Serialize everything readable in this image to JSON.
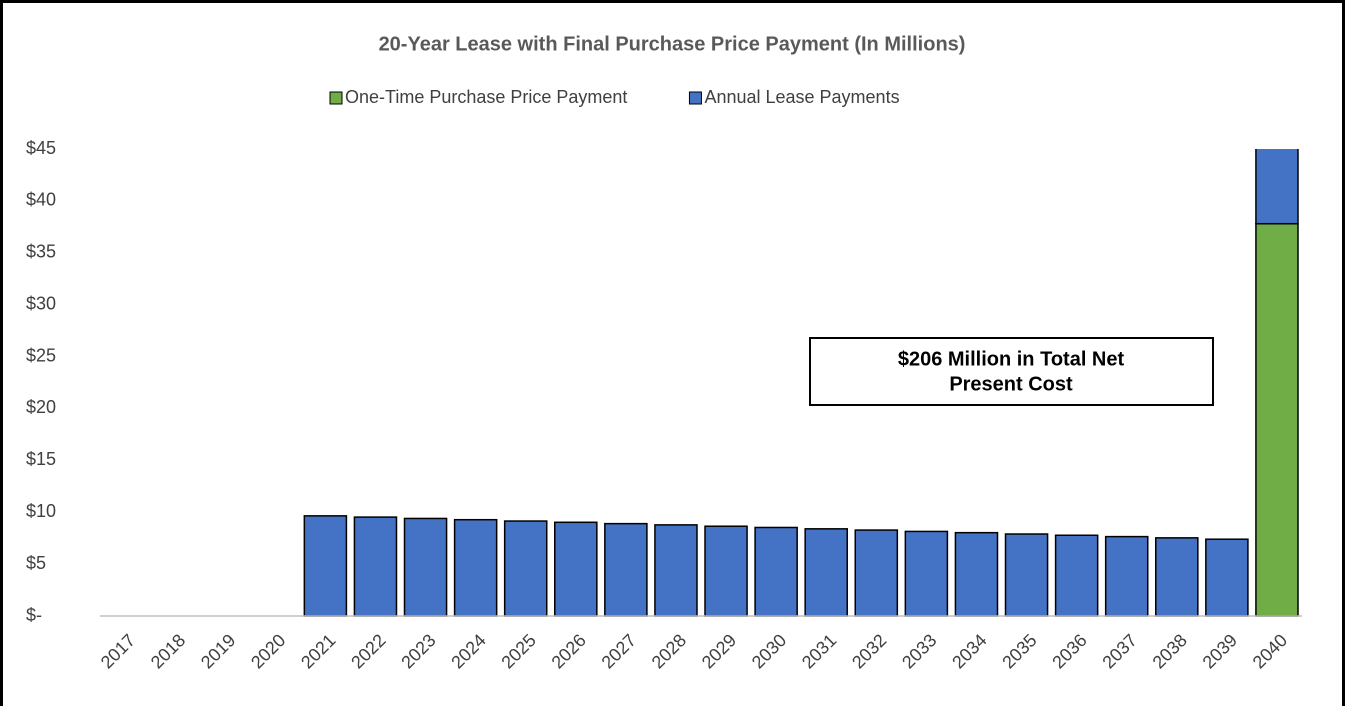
{
  "chart_data": {
    "type": "stacked_bar",
    "title": "20-Year Lease with Final Purchase Price Payment (In Millions)",
    "categories": [
      "2017",
      "2018",
      "2019",
      "2020",
      "2021",
      "2022",
      "2023",
      "2024",
      "2025",
      "2026",
      "2027",
      "2028",
      "2029",
      "2030",
      "2031",
      "2032",
      "2033",
      "2034",
      "2035",
      "2036",
      "2037",
      "2038",
      "2039",
      "2040"
    ],
    "series": [
      {
        "name": "One-Time Purchase Price Payment",
        "color": "#70ad47",
        "values": [
          null,
          null,
          null,
          null,
          null,
          null,
          null,
          null,
          null,
          null,
          null,
          null,
          null,
          null,
          null,
          null,
          null,
          null,
          null,
          null,
          null,
          null,
          null,
          37.8
        ]
      },
      {
        "name": "Annual Lease Payments",
        "color": "#4472c4",
        "values": [
          null,
          null,
          null,
          null,
          9.65,
          9.53,
          9.4,
          9.28,
          9.15,
          9.03,
          8.9,
          8.78,
          8.65,
          8.53,
          8.4,
          8.28,
          8.15,
          8.03,
          7.9,
          7.78,
          7.65,
          7.53,
          7.4,
          7.28
        ]
      }
    ],
    "ylim": [
      0,
      45
    ],
    "yticks": [
      {
        "value": 0,
        "label": "$-"
      },
      {
        "value": 5,
        "label": "$5"
      },
      {
        "value": 10,
        "label": "$10"
      },
      {
        "value": 15,
        "label": "$15"
      },
      {
        "value": 20,
        "label": "$20"
      },
      {
        "value": 25,
        "label": "$25"
      },
      {
        "value": 30,
        "label": "$30"
      },
      {
        "value": 35,
        "label": "$35"
      },
      {
        "value": 40,
        "label": "$40"
      },
      {
        "value": 45,
        "label": "$45"
      }
    ],
    "grid": false,
    "legend": "top",
    "annotation": [
      "$206 Million in Total Net",
      "Present Cost"
    ]
  }
}
